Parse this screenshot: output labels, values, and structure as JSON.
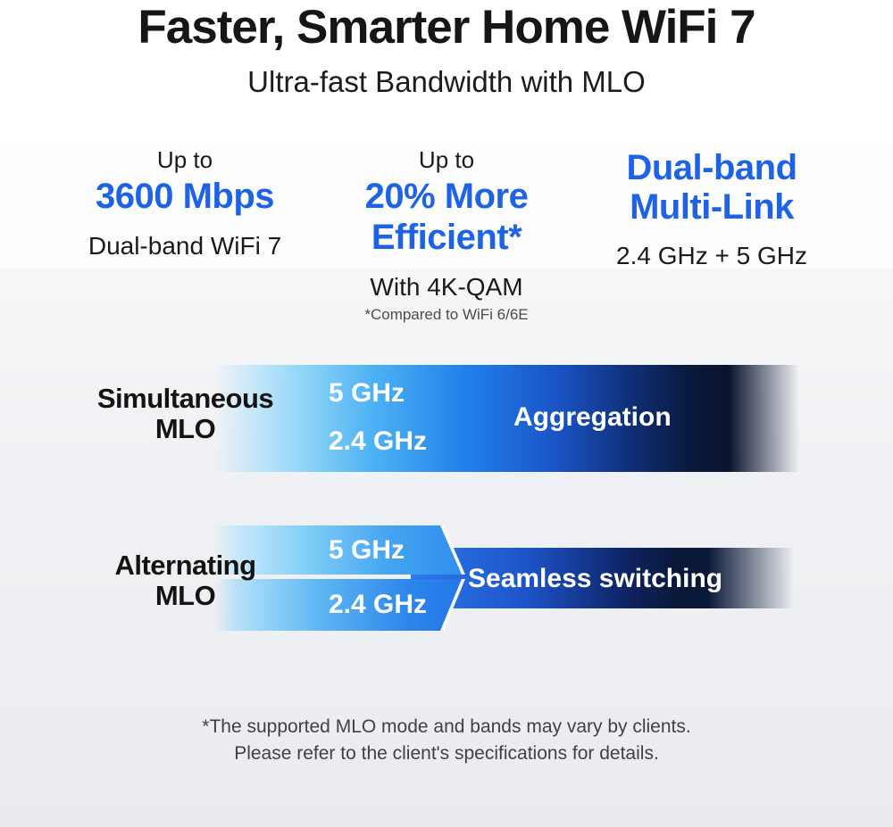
{
  "header": {
    "title": "Faster, Smarter Home WiFi 7",
    "subtitle": "Ultra-fast Bandwidth with MLO"
  },
  "stats": [
    {
      "prefix": "Up to",
      "value": "3600 Mbps",
      "caption": "Dual-band WiFi 7",
      "footnote": ""
    },
    {
      "prefix": "Up to",
      "value": "20% More Efficient*",
      "caption": "With 4K-QAM",
      "footnote": "*Compared to WiFi 6/6E"
    },
    {
      "prefix": "",
      "value": "Dual-band\nMulti-Link",
      "caption": "2.4 GHz + 5 GHz",
      "footnote": ""
    }
  ],
  "mlo": {
    "simultaneous": {
      "label": "Simultaneous\nMLO",
      "band_top": "5 GHz",
      "band_bottom": "2.4 GHz",
      "result": "Aggregation"
    },
    "alternating": {
      "label": "Alternating\nMLO",
      "band_top": "5 GHz",
      "band_bottom": "2.4 GHz",
      "result": "Seamless switching"
    }
  },
  "footer": {
    "note": "*The supported MLO mode and bands may vary by clients.\nPlease refer to the client's specifications for details."
  },
  "colors": {
    "accent_blue": "#1E63E6",
    "band_light_cyan": "#97D8F8",
    "band_mid_blue": "#1D6AE4",
    "band_dark_navy": "#0A1838",
    "text_black": "#161616",
    "footnote_gray": "#4B4B4B"
  }
}
